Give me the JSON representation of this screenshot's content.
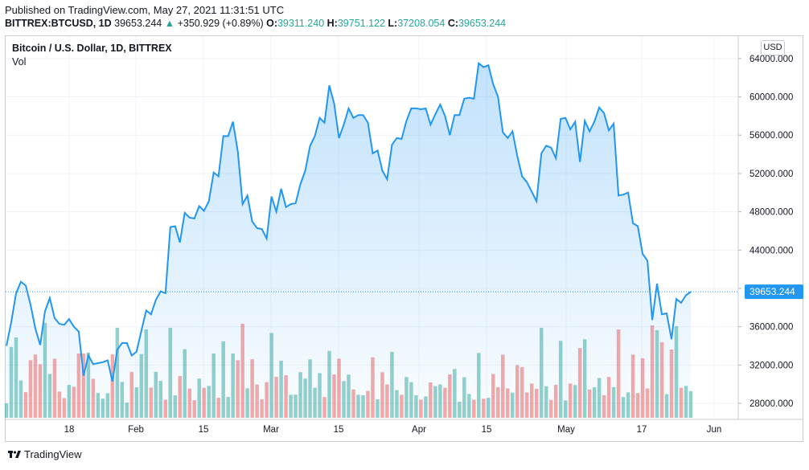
{
  "header": {
    "published": "Published on TradingView.com, May 27, 2021 11:31:51 UTC",
    "symbol": "BITTREX:BTCUSD, 1D",
    "last": "39653.244",
    "change": "+350.929 (+0.89%)",
    "o_label": "O:",
    "o_value": "39311.240",
    "h_label": "H:",
    "h_value": "39751.122",
    "l_label": "L:",
    "l_value": "37208.054",
    "c_label": "C:",
    "c_value": "39653.244"
  },
  "legend": {
    "title": "Bitcoin / U.S. Dollar, 1D, BITTREX",
    "volume": "Vol"
  },
  "currency_button": "USD",
  "footer": {
    "brand": "TradingView"
  },
  "colors": {
    "line": "#2196f3",
    "up": "#26a69a",
    "down": "#ef5350"
  },
  "chart_data": {
    "type": "area",
    "series_name": "BTCUSD",
    "ylim": [
      26500,
      66000
    ],
    "y_ticks": [
      "28000.000",
      "32000.000",
      "36000.000",
      "40000.000",
      "44000.000",
      "48000.000",
      "52000.000",
      "56000.000",
      "60000.000",
      "64000.000"
    ],
    "x_ticks": [
      "18",
      "Feb",
      "15",
      "Mar",
      "15",
      "Apr",
      "15",
      "May",
      "17",
      "Jun"
    ],
    "last_price_label": "39653.244",
    "close": [
      34000,
      36500,
      39500,
      40700,
      40300,
      38300,
      35800,
      34100,
      37600,
      39000,
      36900,
      36300,
      36200,
      36800,
      36000,
      35500,
      30900,
      33000,
      32100,
      32200,
      32300,
      32500,
      30300,
      33600,
      34300,
      34300,
      33000,
      33400,
      35600,
      37700,
      37300,
      38800,
      39700,
      39500,
      46400,
      46500,
      44800,
      47900,
      47400,
      47300,
      48600,
      48100,
      49100,
      52100,
      51700,
      55900,
      55900,
      57400,
      54300,
      48800,
      49700,
      47000,
      46300,
      46200,
      45200,
      49600,
      48000,
      50400,
      48500,
      48800,
      48900,
      50900,
      52300,
      54900,
      55900,
      57800,
      57300,
      61200,
      59300,
      55700,
      57100,
      58800,
      57800,
      58100,
      58100,
      57300,
      54100,
      54400,
      52300,
      51400,
      55000,
      55700,
      55600,
      57500,
      58800,
      58800,
      58700,
      58800,
      57100,
      58200,
      59200,
      58000,
      56000,
      58100,
      58100,
      59800,
      59900,
      59800,
      63500,
      63100,
      63300,
      61300,
      60000,
      56300,
      55700,
      56400,
      53800,
      51700,
      51100,
      50100,
      49100,
      54100,
      54900,
      54700,
      53600,
      57700,
      57800,
      56600,
      57400,
      53200,
      57500,
      56400,
      57400,
      58900,
      58300,
      56500,
      57200,
      49700,
      49800,
      50000,
      46800,
      46500,
      43600,
      42900,
      36700,
      40500,
      37300,
      37400,
      34700,
      38900,
      38500,
      39300,
      39653
    ]
  }
}
